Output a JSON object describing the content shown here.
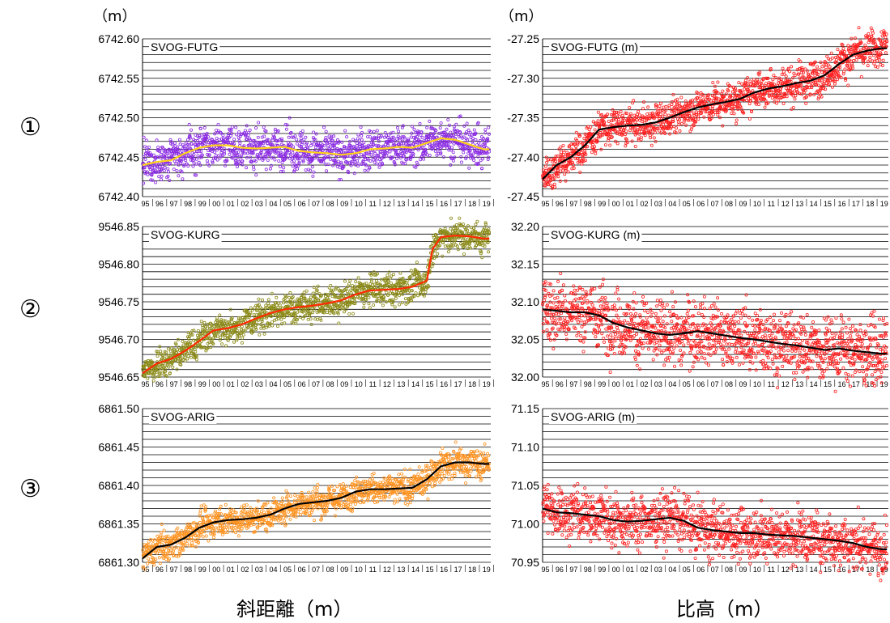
{
  "unit_labels": {
    "left": "（m）",
    "right": "（m）"
  },
  "row_markers": [
    "①",
    "②",
    "③"
  ],
  "column_captions": {
    "left": "斜距離（m）",
    "right": "比高（m）"
  },
  "x_tick_labels": [
    "95",
    "96",
    "97",
    "98",
    "99",
    "00",
    "01",
    "02",
    "03",
    "04",
    "05",
    "06",
    "07",
    "08",
    "09",
    "10",
    "11",
    "12",
    "13",
    "14",
    "15",
    "16",
    "17",
    "18",
    "19"
  ],
  "chart_data": [
    {
      "id": "futg-distance",
      "type": "scatter",
      "title": "SVOG-FUTG",
      "ylim": [
        6742.4,
        6742.6
      ],
      "yticks": [
        "6742.60",
        "6742.55",
        "6742.50",
        "6742.45",
        "6742.40"
      ],
      "grid": true,
      "point_color": "#8a2be2",
      "trend_color": "#ffd21a",
      "noise": 0.012,
      "x_years": [
        1995.0,
        1996.0,
        1997.0,
        1998.0,
        1999.0,
        2000.0,
        2001.0,
        2002.0,
        2003.0,
        2004.0,
        2005.0,
        2006.0,
        2007.0,
        2008.0,
        2009.0,
        2010.0,
        2011.0,
        2012.0,
        2013.0,
        2014.0,
        2015.0,
        2016.0,
        2017.0,
        2018.0,
        2019.0
      ],
      "trend": [
        6742.44,
        6742.444,
        6742.446,
        6742.455,
        6742.462,
        6742.465,
        6742.465,
        6742.462,
        6742.461,
        6742.462,
        6742.463,
        6742.458,
        6742.456,
        6742.455,
        6742.453,
        6742.455,
        6742.46,
        6742.461,
        6742.463,
        6742.462,
        6742.468,
        6742.474,
        6742.472,
        6742.466,
        6742.46
      ]
    },
    {
      "id": "futg-height",
      "type": "scatter",
      "title": "SVOG-FUTG (m)",
      "ylim": [
        -27.45,
        -27.25
      ],
      "yticks": [
        "-27.25",
        "-27.30",
        "-27.35",
        "-27.40",
        "-27.45"
      ],
      "grid": true,
      "point_color": "#ff2020",
      "trend_color": "#000000",
      "noise": 0.011,
      "x_years": [
        1995.0,
        1996.0,
        1997.0,
        1998.0,
        1999.0,
        2000.0,
        2001.0,
        2002.0,
        2003.0,
        2004.0,
        2005.0,
        2006.0,
        2007.0,
        2008.0,
        2009.0,
        2010.0,
        2011.0,
        2012.0,
        2013.0,
        2014.0,
        2015.0,
        2016.0,
        2017.0,
        2018.0,
        2019.0
      ],
      "trend": [
        -27.428,
        -27.41,
        -27.4,
        -27.385,
        -27.365,
        -27.362,
        -27.36,
        -27.359,
        -27.356,
        -27.35,
        -27.343,
        -27.337,
        -27.333,
        -27.33,
        -27.326,
        -27.318,
        -27.313,
        -27.31,
        -27.306,
        -27.303,
        -27.296,
        -27.282,
        -27.27,
        -27.265,
        -27.262
      ]
    },
    {
      "id": "kurg-distance",
      "type": "scatter",
      "title": "SVOG-KURG",
      "ylim": [
        9546.65,
        9546.85
      ],
      "yticks": [
        "9546.85",
        "9546.80",
        "9546.75",
        "9546.70",
        "9546.65"
      ],
      "grid": true,
      "point_color": "#8b8b1a",
      "trend_color": "#ff2a00",
      "noise": 0.01,
      "x_years": [
        1995.0,
        1996.0,
        1997.0,
        1998.0,
        1999.0,
        2000.0,
        2001.0,
        2002.0,
        2003.0,
        2004.0,
        2005.0,
        2006.0,
        2007.0,
        2008.0,
        2009.0,
        2010.0,
        2011.0,
        2012.0,
        2013.0,
        2014.0,
        2015.0,
        2015.4,
        2016.0,
        2017.0,
        2018.0,
        2019.0
      ],
      "trend": [
        9546.655,
        9546.668,
        9546.674,
        9546.685,
        9546.698,
        9546.712,
        9546.715,
        9546.72,
        9546.728,
        9546.735,
        9546.74,
        9546.743,
        9546.745,
        9546.748,
        9546.752,
        9546.76,
        9546.765,
        9546.766,
        9546.767,
        9546.77,
        9546.778,
        9546.82,
        9546.836,
        9546.838,
        9546.837,
        9546.834
      ]
    },
    {
      "id": "kurg-height",
      "type": "scatter",
      "title": "SVOG-KURG (m)",
      "ylim": [
        32.0,
        32.2
      ],
      "yticks": [
        "32.20",
        "32.15",
        "32.10",
        "32.05",
        "32.00"
      ],
      "grid": true,
      "point_color": "#ff2020",
      "trend_color": "#000000",
      "noise": 0.02,
      "x_years": [
        1995.0,
        1996.0,
        1997.0,
        1998.0,
        1999.0,
        2000.0,
        2001.0,
        2002.0,
        2003.0,
        2004.0,
        2005.0,
        2006.0,
        2007.0,
        2008.0,
        2009.0,
        2010.0,
        2011.0,
        2012.0,
        2013.0,
        2014.0,
        2015.0,
        2016.0,
        2017.0,
        2018.0,
        2019.0
      ],
      "trend": [
        32.09,
        32.088,
        32.086,
        32.086,
        32.082,
        32.072,
        32.066,
        32.062,
        32.058,
        32.056,
        32.058,
        32.061,
        32.058,
        32.055,
        32.052,
        32.05,
        32.047,
        32.044,
        32.042,
        32.039,
        32.036,
        32.038,
        32.035,
        32.033,
        32.031
      ]
    },
    {
      "id": "arig-distance",
      "type": "scatter",
      "title": "SVOG-ARIG",
      "ylim": [
        6861.3,
        6861.5
      ],
      "yticks": [
        "6861.50",
        "6861.45",
        "6861.40",
        "6861.35",
        "6861.30"
      ],
      "grid": true,
      "point_color": "#ff9422",
      "trend_color": "#000000",
      "noise": 0.009,
      "x_years": [
        1995.0,
        1996.0,
        1997.0,
        1998.0,
        1999.0,
        2000.0,
        2001.0,
        2002.0,
        2003.0,
        2004.0,
        2005.0,
        2006.0,
        2007.0,
        2008.0,
        2009.0,
        2010.0,
        2011.0,
        2012.0,
        2013.0,
        2014.0,
        2015.0,
        2016.0,
        2017.0,
        2018.0,
        2019.0
      ],
      "trend": [
        6861.305,
        6861.32,
        6861.323,
        6861.332,
        6861.345,
        6861.352,
        6861.355,
        6861.356,
        6861.358,
        6861.362,
        6861.37,
        6861.376,
        6861.378,
        6861.38,
        6861.384,
        6861.392,
        6861.395,
        6861.395,
        6861.396,
        6861.397,
        6861.408,
        6861.425,
        6861.43,
        6861.43,
        6861.428
      ]
    },
    {
      "id": "arig-height",
      "type": "scatter",
      "title": "SVOG-ARIG (m)",
      "ylim": [
        70.95,
        71.15
      ],
      "yticks": [
        "71.15",
        "71.10",
        "71.05",
        "71.00",
        "70.95"
      ],
      "grid": true,
      "point_color": "#ff2020",
      "trend_color": "#000000",
      "noise": 0.016,
      "x_years": [
        1995.0,
        1996.0,
        1997.0,
        1998.0,
        1999.0,
        2000.0,
        2001.0,
        2002.0,
        2003.0,
        2004.0,
        2005.0,
        2006.0,
        2007.0,
        2008.0,
        2009.0,
        2010.0,
        2011.0,
        2012.0,
        2013.0,
        2014.0,
        2015.0,
        2016.0,
        2017.0,
        2018.0,
        2019.0
      ],
      "trend": [
        71.02,
        71.015,
        71.014,
        71.012,
        71.01,
        71.005,
        71.003,
        71.004,
        71.006,
        71.008,
        71.004,
        70.995,
        70.992,
        70.99,
        70.988,
        70.988,
        70.986,
        70.985,
        70.984,
        70.982,
        70.98,
        70.978,
        70.975,
        70.97,
        70.967
      ]
    }
  ]
}
